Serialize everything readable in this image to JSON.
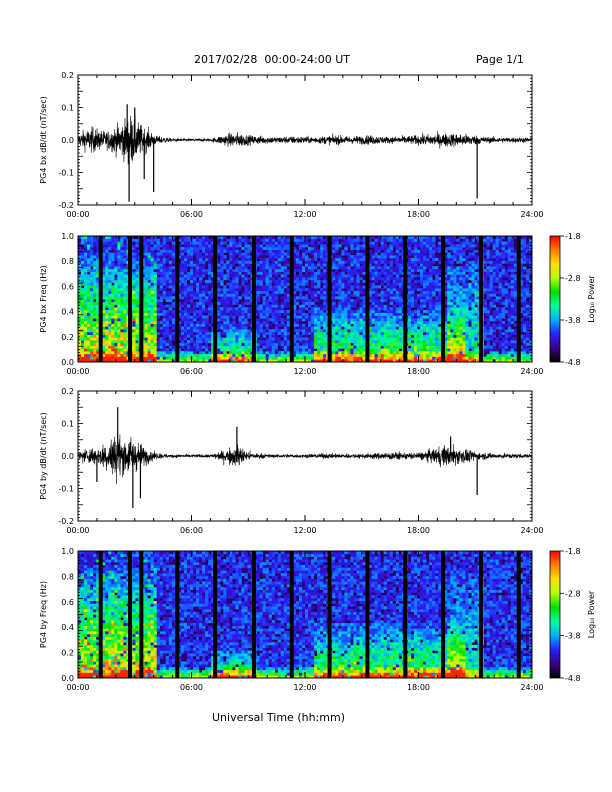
{
  "header": {
    "title": "2017/02/28  00:00-24:00 UT",
    "page": "Page 1/1"
  },
  "footer": {
    "xlabel": "Universal Time (hh:mm)"
  },
  "chart_data": [
    {
      "type": "line",
      "ylabel": "PG4 bx dB/dt (nT/sec)",
      "xlim": [
        0,
        24
      ],
      "ylim": [
        -0.2,
        0.2
      ],
      "xticklabels": [
        "00:00",
        "06:00",
        "12:00",
        "18:00",
        "24:00"
      ],
      "yticklabels": [
        "0.2",
        "0.1",
        "0.0",
        "-0.1",
        "-0.2"
      ],
      "yticks": [
        0.2,
        0.1,
        0.0,
        -0.1,
        -0.2
      ],
      "series": [
        {
          "envelope": [
            [
              0.0,
              0.025
            ],
            [
              0.3,
              0.045
            ],
            [
              0.8,
              0.06
            ],
            [
              1.2,
              0.045
            ],
            [
              1.5,
              0.04
            ],
            [
              1.8,
              0.055
            ],
            [
              2.2,
              0.075
            ],
            [
              2.5,
              0.1
            ],
            [
              2.8,
              0.12
            ],
            [
              3.1,
              0.09
            ],
            [
              3.4,
              0.065
            ],
            [
              3.8,
              0.045
            ],
            [
              4.1,
              0.02
            ],
            [
              4.5,
              0.015
            ],
            [
              5.0,
              0.007
            ],
            [
              7.0,
              0.006
            ],
            [
              7.5,
              0.02
            ],
            [
              8.0,
              0.03
            ],
            [
              8.5,
              0.035
            ],
            [
              9.0,
              0.022
            ],
            [
              9.5,
              0.02
            ],
            [
              10.5,
              0.015
            ],
            [
              11.5,
              0.018
            ],
            [
              12.5,
              0.015
            ],
            [
              13.5,
              0.022
            ],
            [
              14.5,
              0.018
            ],
            [
              15.5,
              0.022
            ],
            [
              16.5,
              0.015
            ],
            [
              17.5,
              0.02
            ],
            [
              18.3,
              0.025
            ],
            [
              19.0,
              0.03
            ],
            [
              19.5,
              0.032
            ],
            [
              20.2,
              0.03
            ],
            [
              20.8,
              0.025
            ],
            [
              21.5,
              0.015
            ],
            [
              22.5,
              0.012
            ],
            [
              24.0,
              0.012
            ]
          ],
          "spikes": [
            [
              2.6,
              0.11
            ],
            [
              2.7,
              -0.19
            ],
            [
              3.5,
              -0.12
            ],
            [
              4.0,
              -0.16
            ],
            [
              21.1,
              -0.18
            ],
            [
              3.0,
              0.1
            ]
          ]
        }
      ]
    },
    {
      "type": "heatmap",
      "ylabel": "PG4 bx Freq (Hz)",
      "xlim": [
        0,
        24
      ],
      "ylim": [
        0,
        1.0
      ],
      "xticklabels": [
        "00:00",
        "06:00",
        "12:00",
        "18:00",
        "24:00"
      ],
      "yticklabels": [
        "1.0",
        "0.8",
        "0.6",
        "0.4",
        "0.2",
        "0.0"
      ],
      "yticks": [
        1.0,
        0.8,
        0.6,
        0.4,
        0.2,
        0.0
      ],
      "colorbar": {
        "label": "Log₁₀ Power",
        "range": [
          -4.8,
          -1.8
        ],
        "ticklabels": [
          "-1.8",
          "-2.8",
          "-3.8",
          "-4.8"
        ],
        "ticks": [
          -1.8,
          -2.8,
          -3.8,
          -4.8
        ],
        "colors": [
          "#000000",
          "#3a0088",
          "#2a20ff",
          "#00b0ff",
          "#00ff9a",
          "#00e000",
          "#b4ff00",
          "#ffe000",
          "#ff8000",
          "#ff0000"
        ]
      },
      "data_gaps_hours": [
        1.2,
        2.75,
        3.35,
        5.25,
        7.25,
        9.3,
        11.3,
        13.3,
        15.3,
        17.3,
        19.3,
        21.3,
        23.3
      ],
      "activity_regions": [
        {
          "t": [
            0.0,
            4.2
          ],
          "fmax": 0.9,
          "level": 0.85
        },
        {
          "t": [
            7.0,
            9.5
          ],
          "fmax": 0.3,
          "level": 0.55
        },
        {
          "t": [
            12.5,
            20.5
          ],
          "fmax": 0.45,
          "level": 0.6
        },
        {
          "t": [
            19.5,
            21.5
          ],
          "fmax": 0.9,
          "level": 0.35
        }
      ]
    },
    {
      "type": "line",
      "ylabel": "PG4 by dB/dt (nT/sec)",
      "xlim": [
        0,
        24
      ],
      "ylim": [
        -0.2,
        0.2
      ],
      "xticklabels": [
        "00:00",
        "06:00",
        "12:00",
        "18:00",
        "24:00"
      ],
      "yticklabels": [
        "0.2",
        "0.1",
        "0.0",
        "-0.1",
        "-0.2"
      ],
      "yticks": [
        0.2,
        0.1,
        0.0,
        -0.1,
        -0.2
      ],
      "series": [
        {
          "envelope": [
            [
              0.0,
              0.02
            ],
            [
              0.3,
              0.03
            ],
            [
              0.8,
              0.04
            ],
            [
              1.2,
              0.05
            ],
            [
              1.5,
              0.07
            ],
            [
              1.8,
              0.09
            ],
            [
              2.1,
              0.1
            ],
            [
              2.5,
              0.08
            ],
            [
              2.8,
              0.09
            ],
            [
              3.2,
              0.06
            ],
            [
              3.6,
              0.04
            ],
            [
              4.1,
              0.015
            ],
            [
              5.0,
              0.007
            ],
            [
              7.0,
              0.008
            ],
            [
              7.5,
              0.02
            ],
            [
              8.0,
              0.04
            ],
            [
              8.5,
              0.05
            ],
            [
              9.0,
              0.02
            ],
            [
              10.0,
              0.008
            ],
            [
              12.0,
              0.008
            ],
            [
              13.0,
              0.012
            ],
            [
              14.0,
              0.01
            ],
            [
              15.5,
              0.012
            ],
            [
              16.5,
              0.018
            ],
            [
              17.5,
              0.015
            ],
            [
              18.3,
              0.02
            ],
            [
              19.0,
              0.04
            ],
            [
              19.5,
              0.05
            ],
            [
              20.2,
              0.04
            ],
            [
              21.0,
              0.02
            ],
            [
              22.0,
              0.012
            ],
            [
              24.0,
              0.01
            ]
          ],
          "spikes": [
            [
              2.1,
              0.15
            ],
            [
              2.9,
              -0.16
            ],
            [
              1.0,
              -0.08
            ],
            [
              3.3,
              -0.13
            ],
            [
              8.4,
              0.09
            ],
            [
              19.7,
              0.06
            ],
            [
              21.1,
              -0.12
            ]
          ]
        }
      ]
    },
    {
      "type": "heatmap",
      "ylabel": "PG4 by Freq (Hz)",
      "xlim": [
        0,
        24
      ],
      "ylim": [
        0,
        1.0
      ],
      "xticklabels": [
        "00:00",
        "06:00",
        "12:00",
        "18:00",
        "24:00"
      ],
      "yticklabels": [
        "1.0",
        "0.8",
        "0.6",
        "0.4",
        "0.2",
        "0.0"
      ],
      "yticks": [
        1.0,
        0.8,
        0.6,
        0.4,
        0.2,
        0.0
      ],
      "colorbar": {
        "label": "Log₁₀ Power",
        "range": [
          -4.8,
          -1.8
        ],
        "ticklabels": [
          "-1.8",
          "-2.8",
          "-3.8",
          "-4.8"
        ],
        "ticks": [
          -1.8,
          -2.8,
          -3.8,
          -4.8
        ],
        "colors": [
          "#000000",
          "#3a0088",
          "#2a20ff",
          "#00b0ff",
          "#00ff9a",
          "#00e000",
          "#b4ff00",
          "#ffe000",
          "#ff8000",
          "#ff0000"
        ]
      },
      "data_gaps_hours": [
        1.2,
        2.75,
        3.35,
        5.25,
        7.25,
        9.3,
        11.3,
        13.3,
        15.3,
        17.3,
        19.3,
        21.3,
        23.3
      ],
      "activity_regions": [
        {
          "t": [
            0.0,
            4.2
          ],
          "fmax": 0.9,
          "level": 0.85
        },
        {
          "t": [
            7.0,
            9.5
          ],
          "fmax": 0.25,
          "level": 0.55
        },
        {
          "t": [
            12.5,
            20.5
          ],
          "fmax": 0.45,
          "level": 0.6
        },
        {
          "t": [
            19.5,
            21.5
          ],
          "fmax": 0.9,
          "level": 0.35
        }
      ]
    }
  ]
}
